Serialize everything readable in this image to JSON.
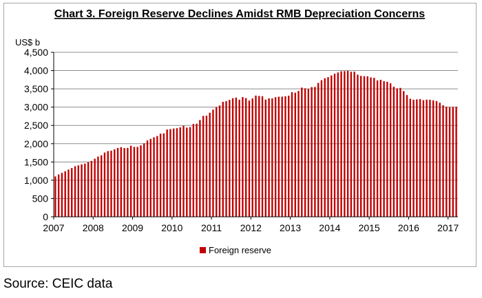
{
  "chart_data": {
    "type": "bar",
    "title": "Chart 3. Foreign Reserve Declines Amidst RMB Depreciation Concerns",
    "ylabel": "US$ b",
    "xlabel": "",
    "ylim": [
      0,
      4500
    ],
    "yticks": [
      "0",
      "500",
      "1,000",
      "1,500",
      "2,000",
      "2,500",
      "3,000",
      "3,500",
      "4,000",
      "4,500"
    ],
    "xticks": [
      "2007",
      "2008",
      "2009",
      "2010",
      "2011",
      "2012",
      "2013",
      "2014",
      "2015",
      "2016",
      "2017"
    ],
    "grid": true,
    "legend_position": "bottom",
    "series": [
      {
        "name": "Foreign reserve",
        "color": "#c00000",
        "monthly_values_from_2007_01": [
          1104,
          1157,
          1202,
          1247,
          1292,
          1333,
          1385,
          1408,
          1434,
          1455,
          1497,
          1528,
          1589,
          1648,
          1682,
          1757,
          1797,
          1809,
          1845,
          1884,
          1906,
          1880,
          1885,
          1946,
          1913,
          1912,
          1954,
          2009,
          2089,
          2132,
          2175,
          2211,
          2273,
          2283,
          2388,
          2399,
          2415,
          2425,
          2447,
          2490,
          2440,
          2454,
          2538,
          2547,
          2648,
          2760,
          2768,
          2847,
          2931,
          2999,
          3045,
          3145,
          3166,
          3198,
          3245,
          3262,
          3202,
          3274,
          3248,
          3181,
          3237,
          3316,
          3305,
          3299,
          3206,
          3240,
          3240,
          3273,
          3285,
          3287,
          3298,
          3312,
          3410,
          3395,
          3443,
          3534,
          3515,
          3497,
          3548,
          3553,
          3663,
          3736,
          3790,
          3821,
          3866,
          3914,
          3948,
          3979,
          3984,
          3993,
          3966,
          3969,
          3888,
          3853,
          3847,
          3843,
          3813,
          3802,
          3730,
          3748,
          3711,
          3694,
          3651,
          3557,
          3514,
          3526,
          3438,
          3330,
          3230,
          3202,
          3212,
          3219,
          3191,
          3205,
          3201,
          3185,
          3166,
          3121,
          3052,
          3011,
          2998,
          3005,
          3009
        ]
      }
    ]
  },
  "footer": {
    "source": "Source: CEIC data"
  }
}
